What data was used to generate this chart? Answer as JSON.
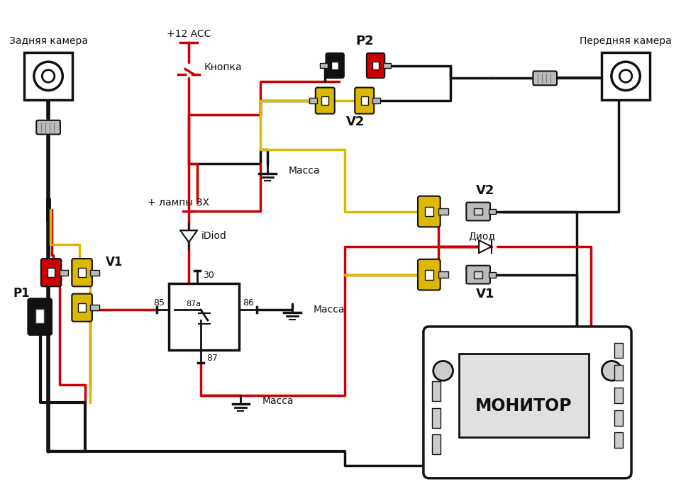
{
  "bg_color": "#ffffff",
  "red": "#cc0000",
  "black": "#111111",
  "yellow": "#ddb800",
  "gray": "#888888",
  "lgray": "#bbbbbb",
  "labels": {
    "rear_camera": "Задняя камера",
    "front_camera": "Передняя камера",
    "button": "Кнопка",
    "plus12acc": "+12 ACC",
    "lamp_plus": "+ лампы ЗХ",
    "idiod": "iDiod",
    "massa": "Масса",
    "diod": "Диод",
    "monitor": "МОНИТОР",
    "p1": "P1",
    "p2": "P2",
    "v1": "V1",
    "v2": "V2",
    "relay_30": "30",
    "relay_85": "85",
    "relay_86": "86",
    "relay_87a": "87a",
    "relay_87": "87"
  }
}
